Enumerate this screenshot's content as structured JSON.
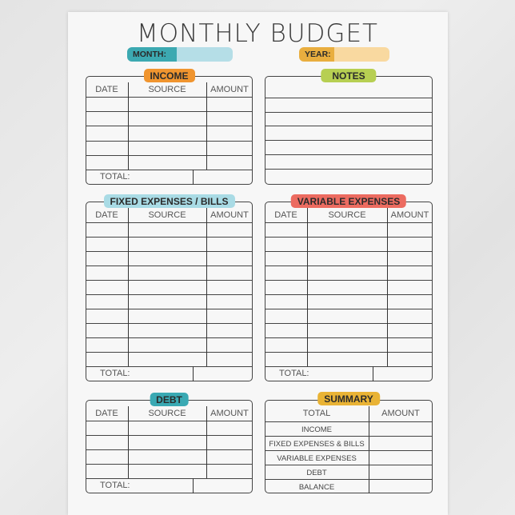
{
  "title": "MONTHLY BUDGET",
  "month": {
    "label": "MONTH:",
    "value": ""
  },
  "year": {
    "label": "YEAR:",
    "value": ""
  },
  "colors": {
    "month_label": "#3ca9b1",
    "month_fill": "#b5dee7",
    "year_label": "#e9ae3f",
    "year_fill": "#f9d9a0",
    "income": "#f0952f",
    "notes": "#b7cf52",
    "fixed": "#a9dbe5",
    "variable": "#ec6b60",
    "debt": "#3aa9b3",
    "summary": "#e9b335"
  },
  "columns": {
    "date": "DATE",
    "source": "SOURCE",
    "amount": "AMOUNT"
  },
  "total_label": "TOTAL:",
  "sections": {
    "income": {
      "title": "INCOME"
    },
    "notes": {
      "title": "NOTES"
    },
    "fixed": {
      "title": "FIXED EXPENSES / BILLS"
    },
    "variable": {
      "title": "VARIABLE EXPENSES"
    },
    "debt": {
      "title": "DEBT"
    },
    "summary": {
      "title": "SUMMARY",
      "col_total": "TOTAL",
      "col_amount": "AMOUNT",
      "rows": [
        "INCOME",
        "FIXED EXPENSES & BILLS",
        "VARIABLE EXPENSES",
        "DEBT",
        "BALANCE"
      ]
    }
  }
}
